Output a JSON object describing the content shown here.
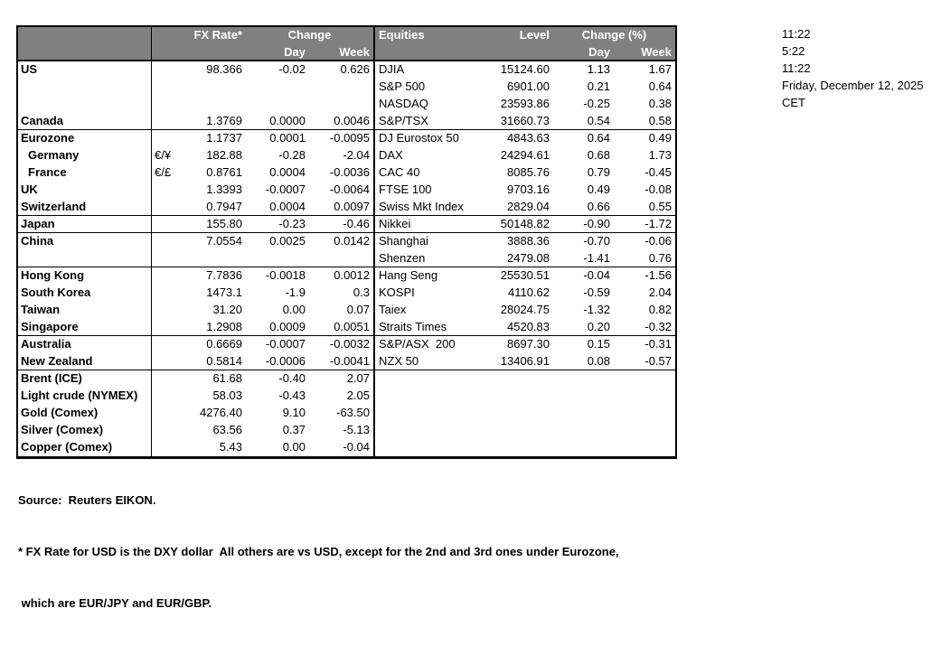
{
  "colors": {
    "header_bg": "#808080",
    "header_text": "#ffffff",
    "border": "#000000",
    "page_bg": "#ffffff"
  },
  "table": {
    "header": {
      "fx_rate": "FX Rate*",
      "change": "Change",
      "day": "Day",
      "week": "Week",
      "equities": "Equities",
      "level": "Level",
      "change_pct": "Change (%)"
    },
    "rows": [
      {
        "name": "US",
        "symbol": "",
        "fx": "98.366",
        "fx_day": "-0.02",
        "fx_week": "0.626",
        "equity": "DJIA",
        "level": "15124.60",
        "eq_day": "1.13",
        "eq_week": "1.67",
        "indent": false,
        "group_end": false
      },
      {
        "name": "",
        "symbol": "",
        "fx": "",
        "fx_day": "",
        "fx_week": "",
        "equity": "S&P 500",
        "level": "6901.00",
        "eq_day": "0.21",
        "eq_week": "0.64",
        "indent": false,
        "group_end": false
      },
      {
        "name": "",
        "symbol": "",
        "fx": "",
        "fx_day": "",
        "fx_week": "",
        "equity": "NASDAQ",
        "level": "23593.86",
        "eq_day": "-0.25",
        "eq_week": "0.38",
        "indent": false,
        "group_end": false
      },
      {
        "name": "Canada",
        "symbol": "",
        "fx": "1.3769",
        "fx_day": "0.0000",
        "fx_week": "0.0046",
        "equity": "S&P/TSX",
        "level": "31660.73",
        "eq_day": "0.54",
        "eq_week": "0.58",
        "indent": false,
        "group_end": true
      },
      {
        "name": "Eurozone",
        "symbol": "",
        "fx": "1.1737",
        "fx_day": "0.0001",
        "fx_week": "-0.0095",
        "equity": "DJ Eurostox 50",
        "level": "4843.63",
        "eq_day": "0.64",
        "eq_week": "0.49",
        "indent": false,
        "group_end": false
      },
      {
        "name": "Germany",
        "symbol": "€/¥",
        "fx": "182.88",
        "fx_day": "-0.28",
        "fx_week": "-2.04",
        "equity": "DAX",
        "level": "24294.61",
        "eq_day": "0.68",
        "eq_week": "1.73",
        "indent": true,
        "group_end": false
      },
      {
        "name": "France",
        "symbol": "€/£",
        "fx": "0.8761",
        "fx_day": "0.0004",
        "fx_week": "-0.0036",
        "equity": "CAC 40",
        "level": "8085.76",
        "eq_day": "0.79",
        "eq_week": "-0.45",
        "indent": true,
        "group_end": false
      },
      {
        "name": "UK",
        "symbol": "",
        "fx": "1.3393",
        "fx_day": "-0.0007",
        "fx_week": "-0.0064",
        "equity": "FTSE 100",
        "level": "9703.16",
        "eq_day": "0.49",
        "eq_week": "-0.08",
        "indent": false,
        "group_end": false
      },
      {
        "name": "Switzerland",
        "symbol": "",
        "fx": "0.7947",
        "fx_day": "0.0004",
        "fx_week": "0.0097",
        "equity": "Swiss Mkt Index",
        "level": "2829.04",
        "eq_day": "0.66",
        "eq_week": "0.55",
        "indent": false,
        "group_end": true
      },
      {
        "name": "Japan",
        "symbol": "",
        "fx": "155.80",
        "fx_day": "-0.23",
        "fx_week": "-0.46",
        "equity": "Nikkei",
        "level": "50148.82",
        "eq_day": "-0.90",
        "eq_week": "-1.72",
        "indent": false,
        "group_end": true
      },
      {
        "name": "China",
        "symbol": "",
        "fx": "7.0554",
        "fx_day": "0.0025",
        "fx_week": "0.0142",
        "equity": "Shanghai",
        "level": "3888.36",
        "eq_day": "-0.70",
        "eq_week": "-0.06",
        "indent": false,
        "group_end": false
      },
      {
        "name": "",
        "symbol": "",
        "fx": "",
        "fx_day": "",
        "fx_week": "",
        "equity": "Shenzen",
        "level": "2479.08",
        "eq_day": "-1.41",
        "eq_week": "0.76",
        "indent": false,
        "group_end": true
      },
      {
        "name": "Hong Kong",
        "symbol": "",
        "fx": "7.7836",
        "fx_day": "-0.0018",
        "fx_week": "0.0012",
        "equity": "Hang Seng",
        "level": "25530.51",
        "eq_day": "-0.04",
        "eq_week": "-1.56",
        "indent": false,
        "group_end": false
      },
      {
        "name": "South Korea",
        "symbol": "",
        "fx": "1473.1",
        "fx_day": "-1.9",
        "fx_week": "0.3",
        "equity": "KOSPI",
        "level": "4110.62",
        "eq_day": "-0.59",
        "eq_week": "2.04",
        "indent": false,
        "group_end": false
      },
      {
        "name": "Taiwan",
        "symbol": "",
        "fx": "31.20",
        "fx_day": "0.00",
        "fx_week": "0.07",
        "equity": "Taiex",
        "level": "28024.75",
        "eq_day": "-1.32",
        "eq_week": "0.82",
        "indent": false,
        "group_end": false
      },
      {
        "name": "Singapore",
        "symbol": "",
        "fx": "1.2908",
        "fx_day": "0.0009",
        "fx_week": "0.0051",
        "equity": "Straits Times",
        "level": "4520.83",
        "eq_day": "0.20",
        "eq_week": "-0.32",
        "indent": false,
        "group_end": true
      },
      {
        "name": "Australia",
        "symbol": "",
        "fx": "0.6669",
        "fx_day": "-0.0007",
        "fx_week": "-0.0032",
        "equity": "S&P/ASX  200",
        "level": "8697.30",
        "eq_day": "0.15",
        "eq_week": "-0.31",
        "indent": false,
        "group_end": false
      },
      {
        "name": "New Zealand",
        "symbol": "",
        "fx": "0.5814",
        "fx_day": "-0.0006",
        "fx_week": "-0.0041",
        "equity": "NZX 50",
        "level": "13406.91",
        "eq_day": "0.08",
        "eq_week": "-0.57",
        "indent": false,
        "group_end": true
      },
      {
        "name": "Brent (ICE)",
        "symbol": "",
        "fx": "61.68",
        "fx_day": "-0.40",
        "fx_week": "2.07",
        "equity": "",
        "level": "",
        "eq_day": "",
        "eq_week": "",
        "indent": false,
        "group_end": false
      },
      {
        "name": "Light crude (NYMEX)",
        "symbol": "",
        "fx": "58.03",
        "fx_day": "-0.43",
        "fx_week": "2.05",
        "equity": "",
        "level": "",
        "eq_day": "",
        "eq_week": "",
        "indent": false,
        "group_end": false
      },
      {
        "name": "Gold (Comex)",
        "symbol": "",
        "fx": "4276.40",
        "fx_day": "9.10",
        "fx_week": "-63.50",
        "equity": "",
        "level": "",
        "eq_day": "",
        "eq_week": "",
        "indent": false,
        "group_end": false
      },
      {
        "name": "Silver (Comex)",
        "symbol": "",
        "fx": "63.56",
        "fx_day": "0.37",
        "fx_week": "-5.13",
        "equity": "",
        "level": "",
        "eq_day": "",
        "eq_week": "",
        "indent": false,
        "group_end": false
      },
      {
        "name": "Copper (Comex)",
        "symbol": "",
        "fx": "5.43",
        "fx_day": "0.00",
        "fx_week": "-0.04",
        "equity": "",
        "level": "",
        "eq_day": "",
        "eq_week": "",
        "indent": false,
        "group_end": false
      }
    ]
  },
  "times": [
    "11:22",
    "5:22",
    "11:22",
    "Friday, December 12, 2025",
    "CET"
  ],
  "footer": {
    "source": "Source:  Reuters EIKON.",
    "note1": "* FX Rate for USD is the DXY dollar  All others are vs USD, except for the 2nd and 3rd ones under Eurozone,",
    "note2": " which are EUR/JPY and EUR/GBP."
  }
}
